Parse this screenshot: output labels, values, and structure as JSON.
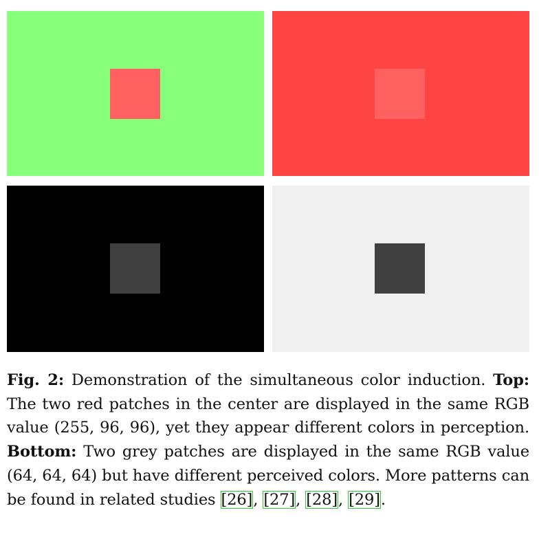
{
  "figure": {
    "panels": [
      {
        "id": "top-left",
        "background": "#88ff7a",
        "patch": "#ff6060"
      },
      {
        "id": "top-right",
        "background": "#ff4444",
        "patch": "#ff6060"
      },
      {
        "id": "bottom-left",
        "background": "#000000",
        "patch": "#404040"
      },
      {
        "id": "bottom-right",
        "background": "#f0f0f0",
        "patch": "#404040"
      }
    ]
  },
  "caption": {
    "label": "Fig. 2:",
    "intro": " Demonstration of the simultaneous color induction. ",
    "top_label": "Top:",
    "top_text": " The two red patches in the center are displayed in the same RGB value (255, 96, 96), yet they appear different col­ors in perception. ",
    "bottom_label": "Bottom:",
    "bottom_text": " Two grey patches are displayed in the same RGB value (64, 64, 64) but have different perceived colors. More patterns can be found in related studies ",
    "refs": [
      "[26]",
      "[27]",
      "[28]",
      "[29]"
    ],
    "sep1": ", ",
    "sep2": ", ",
    "sep3": ", ",
    "end": "."
  }
}
